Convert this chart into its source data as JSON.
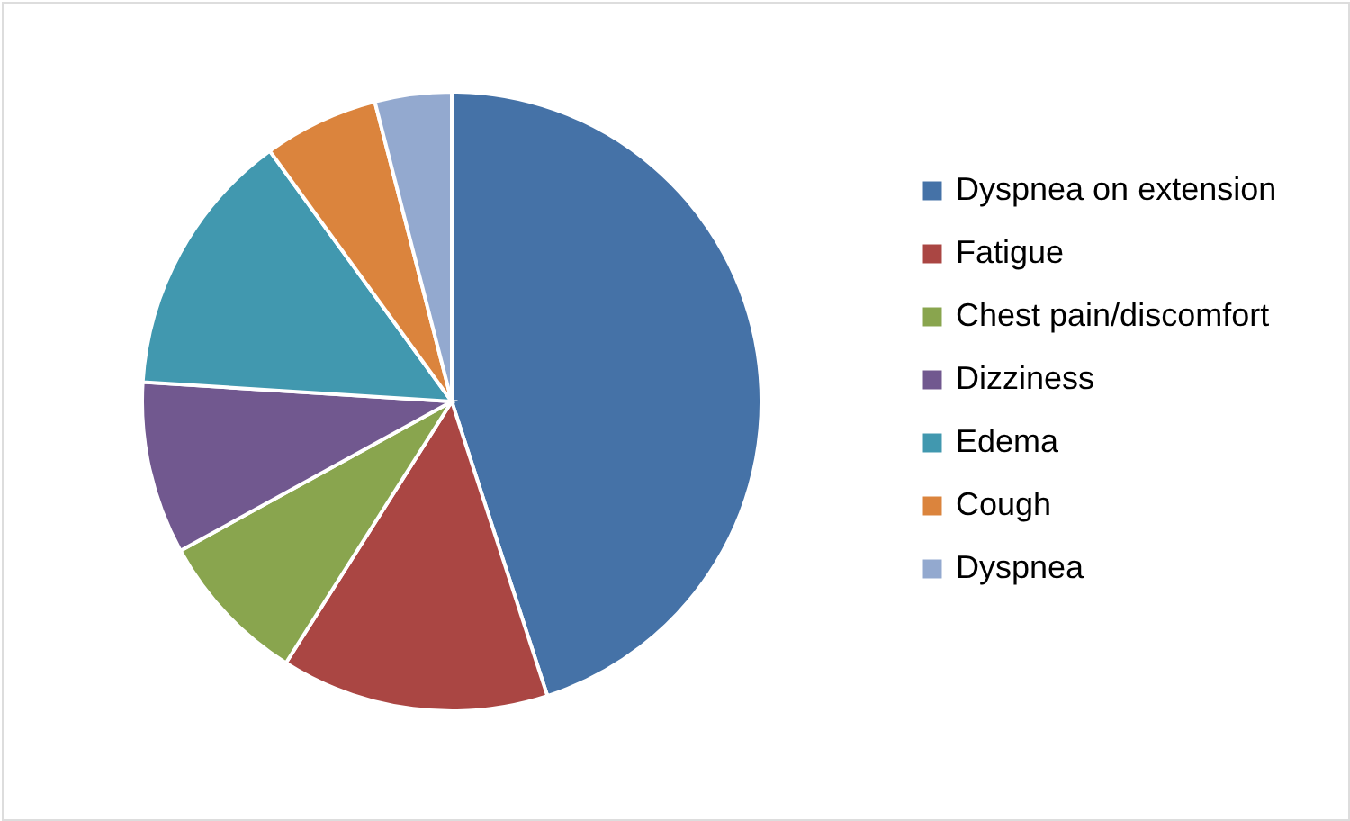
{
  "chart_data": {
    "type": "pie",
    "categories": [
      "Dyspnea on extension",
      "Fatigue",
      "Chest pain/discomfort",
      "Dizziness",
      "Edema",
      "Cough",
      "Dyspnea"
    ],
    "values": [
      45,
      14,
      8,
      9,
      14,
      6,
      4
    ],
    "colors": [
      "#4572a7",
      "#aa4643",
      "#89a54e",
      "#71588f",
      "#4198af",
      "#db843d",
      "#93a9cf"
    ],
    "legend": "right"
  }
}
